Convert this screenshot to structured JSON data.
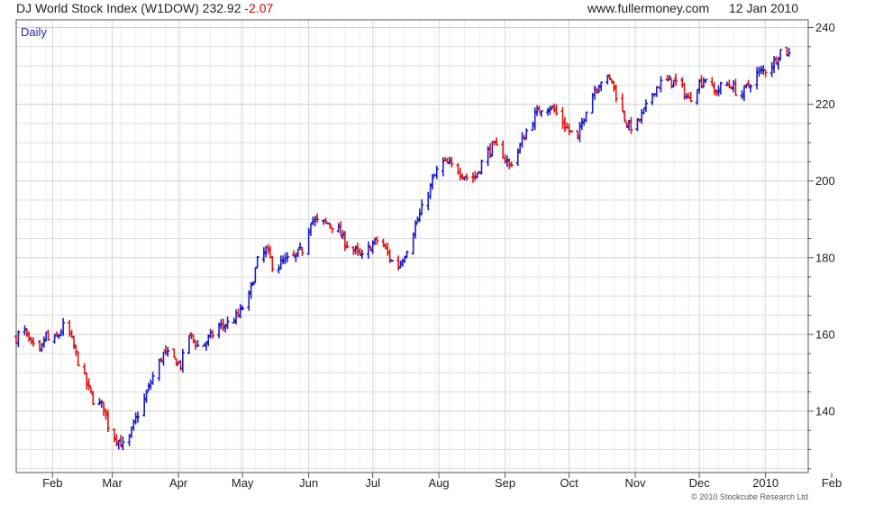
{
  "header": {
    "name": "DJ World Stock Index (W1DOW)",
    "last": "232.92",
    "change": "-2.07",
    "site": "www.fullermoney.com",
    "date": "12 Jan 2010"
  },
  "copyright": "© 2010 Stockcube Research Ltd",
  "colors": {
    "up": "#1a1acc",
    "down": "#dd1111",
    "grid": "#dddddd",
    "frame": "#555555",
    "period_label": "#2a2aaa"
  },
  "chart_data": {
    "type": "ohlc-bar",
    "period": "Daily",
    "y_axis": {
      "ylim": [
        124,
        242
      ],
      "ticks": [
        140,
        160,
        180,
        200,
        220,
        240
      ],
      "side": "right"
    },
    "x_axis": {
      "start": "2009-01-15",
      "end": "2010-01-21",
      "ticks": [
        {
          "date": "2009-02-01",
          "label": "Feb"
        },
        {
          "date": "2009-03-01",
          "label": "Mar"
        },
        {
          "date": "2009-04-01",
          "label": "Apr"
        },
        {
          "date": "2009-05-01",
          "label": "May"
        },
        {
          "date": "2009-06-01",
          "label": "Jun"
        },
        {
          "date": "2009-07-01",
          "label": "Jul"
        },
        {
          "date": "2009-08-01",
          "label": "Aug"
        },
        {
          "date": "2009-09-01",
          "label": "Sep"
        },
        {
          "date": "2009-10-01",
          "label": "Oct"
        },
        {
          "date": "2009-11-01",
          "label": "Nov"
        },
        {
          "date": "2009-12-01",
          "label": "Dec"
        },
        {
          "date": "2010-01-01",
          "label": "2010"
        },
        {
          "date": "2010-02-01",
          "label": "Feb"
        }
      ]
    },
    "close_path": [
      [
        "2009-01-15",
        159
      ],
      [
        "2009-01-18",
        162
      ],
      [
        "2009-01-22",
        157
      ],
      [
        "2009-01-26",
        155
      ],
      [
        "2009-01-29",
        160
      ],
      [
        "2009-01-31",
        157
      ],
      [
        "2009-02-04",
        160
      ],
      [
        "2009-02-07",
        163
      ],
      [
        "2009-02-09",
        160
      ],
      [
        "2009-02-13",
        153
      ],
      [
        "2009-02-17",
        147
      ],
      [
        "2009-02-20",
        143
      ],
      [
        "2009-02-25",
        141
      ],
      [
        "2009-02-28",
        134
      ],
      [
        "2009-03-03",
        133
      ],
      [
        "2009-03-06",
        131
      ],
      [
        "2009-03-09",
        133
      ],
      [
        "2009-03-12",
        138
      ],
      [
        "2009-03-16",
        143
      ],
      [
        "2009-03-20",
        149
      ],
      [
        "2009-03-25",
        155
      ],
      [
        "2009-03-29",
        154
      ],
      [
        "2009-04-02",
        152
      ],
      [
        "2009-04-06",
        160
      ],
      [
        "2009-04-10",
        157
      ],
      [
        "2009-04-14",
        158
      ],
      [
        "2009-04-20",
        162
      ],
      [
        "2009-04-25",
        163
      ],
      [
        "2009-04-29",
        165
      ],
      [
        "2009-05-04",
        170
      ],
      [
        "2009-05-08",
        179
      ],
      [
        "2009-05-12",
        182
      ],
      [
        "2009-05-16",
        177
      ],
      [
        "2009-05-20",
        179
      ],
      [
        "2009-05-25",
        180
      ],
      [
        "2009-05-29",
        182
      ],
      [
        "2009-06-02",
        190
      ],
      [
        "2009-06-06",
        189
      ],
      [
        "2009-06-10",
        189
      ],
      [
        "2009-06-14",
        188
      ],
      [
        "2009-06-18",
        184
      ],
      [
        "2009-06-22",
        182
      ],
      [
        "2009-06-26",
        180
      ],
      [
        "2009-06-30",
        183
      ],
      [
        "2009-07-04",
        185
      ],
      [
        "2009-07-08",
        181
      ],
      [
        "2009-07-12",
        177
      ],
      [
        "2009-07-16",
        181
      ],
      [
        "2009-07-20",
        187
      ],
      [
        "2009-07-25",
        194
      ],
      [
        "2009-07-29",
        200
      ],
      [
        "2009-08-02",
        205
      ],
      [
        "2009-08-06",
        204
      ],
      [
        "2009-08-10",
        203
      ],
      [
        "2009-08-14",
        201
      ],
      [
        "2009-08-18",
        201
      ],
      [
        "2009-08-22",
        206
      ],
      [
        "2009-08-26",
        209
      ],
      [
        "2009-08-30",
        208
      ],
      [
        "2009-09-03",
        204
      ],
      [
        "2009-09-07",
        208
      ],
      [
        "2009-09-11",
        213
      ],
      [
        "2009-09-15",
        217
      ],
      [
        "2009-09-19",
        220
      ],
      [
        "2009-09-23",
        219
      ],
      [
        "2009-09-27",
        216
      ],
      [
        "2009-10-01",
        213
      ],
      [
        "2009-10-05",
        211
      ],
      [
        "2009-10-09",
        219
      ],
      [
        "2009-10-13",
        224
      ],
      [
        "2009-10-17",
        227
      ],
      [
        "2009-10-21",
        226
      ],
      [
        "2009-10-25",
        219
      ],
      [
        "2009-10-29",
        214
      ],
      [
        "2009-11-02",
        215
      ],
      [
        "2009-11-06",
        219
      ],
      [
        "2009-11-10",
        224
      ],
      [
        "2009-11-14",
        226
      ],
      [
        "2009-11-18",
        226
      ],
      [
        "2009-11-22",
        225
      ],
      [
        "2009-11-26",
        221
      ],
      [
        "2009-11-30",
        225
      ],
      [
        "2009-12-04",
        227
      ],
      [
        "2009-12-08",
        223
      ],
      [
        "2009-12-12",
        225
      ],
      [
        "2009-12-16",
        225
      ],
      [
        "2009-12-20",
        222
      ],
      [
        "2009-12-24",
        225
      ],
      [
        "2009-12-28",
        228
      ],
      [
        "2010-01-01",
        229
      ],
      [
        "2010-01-05",
        231
      ],
      [
        "2010-01-09",
        235
      ],
      [
        "2010-01-12",
        233
      ]
    ]
  }
}
